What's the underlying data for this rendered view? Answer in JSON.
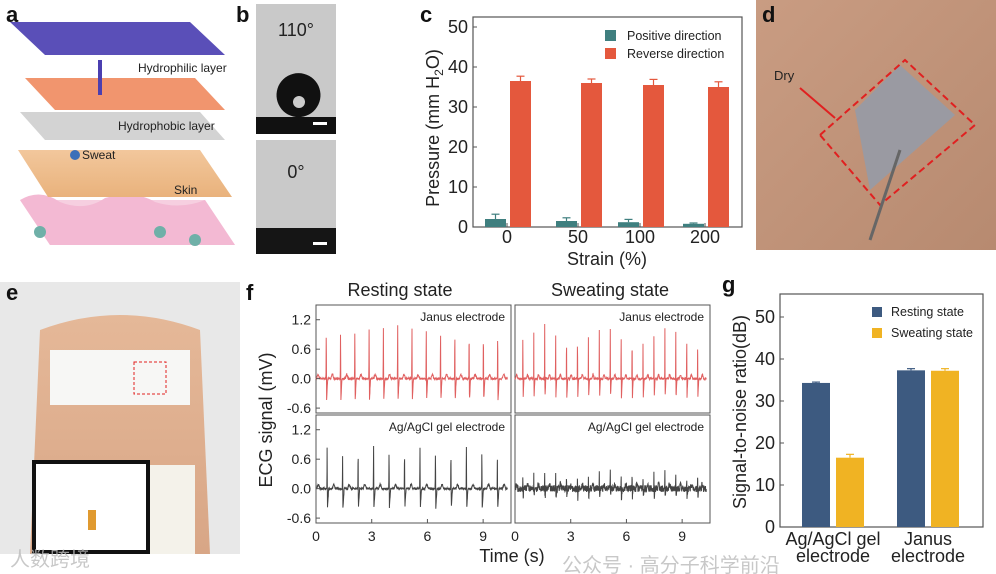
{
  "panel_labels": [
    "a",
    "b",
    "c",
    "d",
    "e",
    "f",
    "g"
  ],
  "panel_a": {
    "labels": [
      "Hydrophilic layer",
      "Hydrophobic layer",
      "Sweat",
      "Skin"
    ]
  },
  "panel_b": {
    "angles": [
      "110°",
      "0°"
    ]
  },
  "panel_d": {
    "annotation": "Dry"
  },
  "panel_f": {
    "titles": [
      "Resting state",
      "Sweating state"
    ],
    "top_legend": "Janus electrode",
    "bottom_legend": "Ag/AgCl gel electrode",
    "ylabel": "ECG signal (mV)",
    "xlabel": "Time (s)",
    "yticks": [
      "1.2",
      "0.6",
      "0.0",
      "-0.6"
    ],
    "xticks": [
      "0",
      "3",
      "6",
      "9"
    ]
  },
  "watermarks": [
    "人数跨境",
    "公众号 · 高分子科学前沿"
  ],
  "colors": {
    "positive": "#3f7f7f",
    "reverse": "#e4583d",
    "resting": "#3d5a80",
    "sweating": "#f0b323",
    "ecg_janus": "#e06060",
    "ecg_ag": "#444444"
  },
  "chart_data": [
    {
      "id": "c",
      "type": "bar",
      "categories": [
        "0",
        "50",
        "100",
        "200"
      ],
      "series": [
        {
          "name": "Positive direction",
          "values": [
            2.0,
            1.5,
            1.2,
            0.8
          ],
          "errors": [
            1.2,
            0.8,
            0.7,
            0.2
          ]
        },
        {
          "name": "Reverse direction",
          "values": [
            36.5,
            36.0,
            35.5,
            35.0
          ],
          "errors": [
            1.2,
            1.0,
            1.4,
            1.3
          ]
        }
      ],
      "xlabel": "Strain (%)",
      "ylabel": "Pressure (mm H2O)",
      "ylim": [
        0,
        50
      ],
      "yticks": [
        "0",
        "10",
        "20",
        "30",
        "40",
        "50"
      ],
      "legend": "top-right"
    },
    {
      "id": "f",
      "type": "line",
      "panels": [
        {
          "state": "Resting state",
          "electrode": "Janus electrode",
          "beats": 13,
          "peak_mV": 1.1,
          "trough_mV": -0.45,
          "noise": 0.02
        },
        {
          "state": "Sweating state",
          "electrode": "Janus electrode",
          "beats": 17,
          "peak_mV": 1.1,
          "trough_mV": -0.4,
          "noise": 0.02
        },
        {
          "state": "Resting state",
          "electrode": "Ag/AgCl gel electrode",
          "beats": 12,
          "peak_mV": 0.85,
          "trough_mV": -0.4,
          "noise": 0.02
        },
        {
          "state": "Sweating state",
          "electrode": "Ag/AgCl gel electrode",
          "beats": 17,
          "peak_mV": 0.35,
          "trough_mV": -0.2,
          "noise": 0.07
        }
      ],
      "xlim": [
        0,
        10.5
      ],
      "ylim": [
        -0.7,
        1.5
      ]
    },
    {
      "id": "g",
      "type": "bar",
      "categories": [
        "Ag/AgCl gel electrode",
        "Janus electrode"
      ],
      "category_lines": [
        [
          "Ag/AgCl gel",
          "electrode"
        ],
        [
          "Janus",
          "electrode"
        ]
      ],
      "series": [
        {
          "name": "Resting state",
          "values": [
            34.3,
            37.3
          ],
          "errors": [
            0.2,
            0.4
          ]
        },
        {
          "name": "Sweating state",
          "values": [
            16.5,
            37.2
          ],
          "errors": [
            0.8,
            0.5
          ]
        }
      ],
      "ylabel": "Signal-to-noise ratio(dB)",
      "ylim": [
        0,
        55
      ],
      "yticks": [
        "0",
        "10",
        "20",
        "30",
        "40",
        "50"
      ],
      "legend": "top-right"
    }
  ]
}
